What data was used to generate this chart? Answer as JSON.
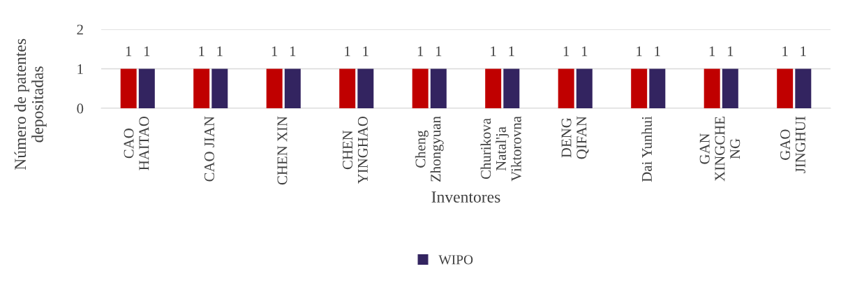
{
  "chart_data": {
    "type": "bar",
    "xlabel": "Inventores",
    "ylabel": "Número de patentes\ndepositadas",
    "categories": [
      "CAO\nHAITAO",
      "CAO JIAN",
      "CHEN XIN",
      "CHEN\nYINGHAO",
      "Cheng\nZhongyuan",
      "Churikova\nNatal'ja\nViktorovna",
      "DENG\nQIFAN",
      "Dai Yunhui",
      "GAN\nXINGCHE\nNG",
      "GAO\nJINGHUI"
    ],
    "series": [
      {
        "color": "#c00000",
        "values": [
          1,
          1,
          1,
          1,
          1,
          1,
          1,
          1,
          1,
          1
        ]
      },
      {
        "name": "WIPO",
        "color": "#332460",
        "values": [
          1,
          1,
          1,
          1,
          1,
          1,
          1,
          1,
          1,
          1
        ]
      }
    ],
    "ylim": [
      0,
      2
    ],
    "yticks": [
      0,
      1,
      2
    ],
    "grid": "y",
    "data_labels": true,
    "legend": "bottom"
  }
}
